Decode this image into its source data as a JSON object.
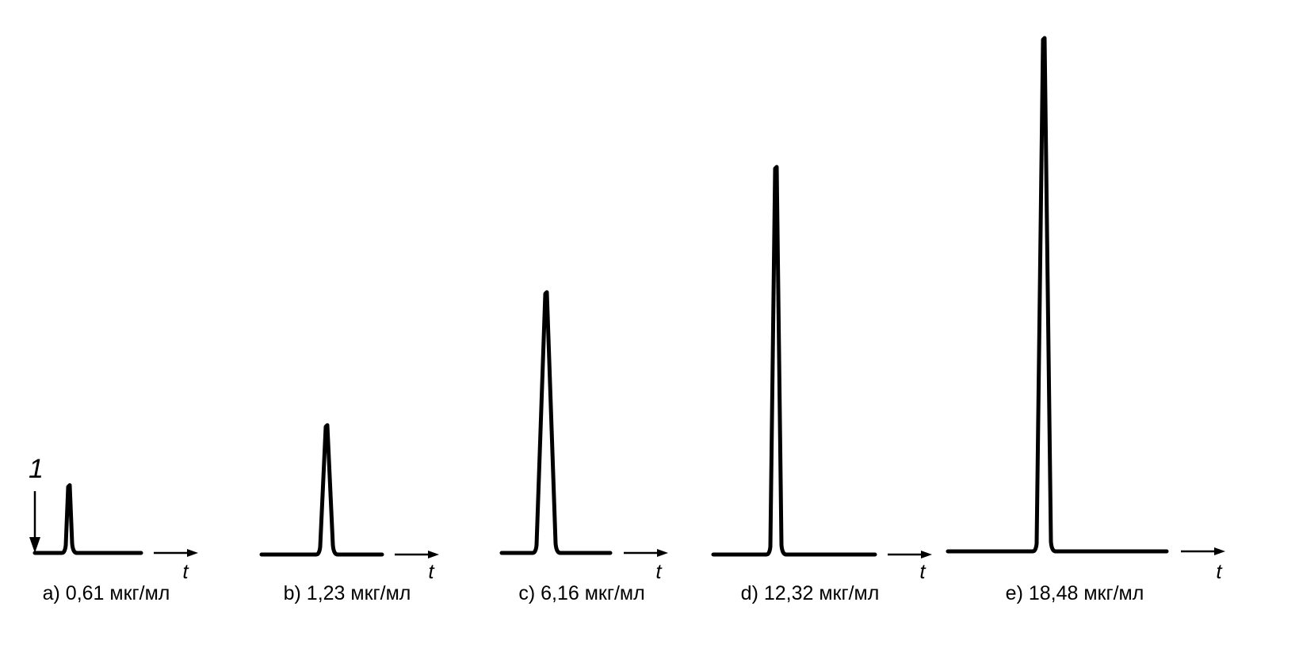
{
  "chart_data": {
    "type": "line",
    "marker": {
      "label": "1"
    },
    "axis_label": "t",
    "panels": [
      {
        "caption": "a) 0,61 мкг/мл",
        "peak_height": 0.132
      },
      {
        "caption": "b) 1,23 мкг/мл",
        "peak_height": 0.252
      },
      {
        "caption": "c) 6,16 мкг/мл",
        "peak_height": 0.508
      },
      {
        "caption": "d) 12,32 мкг/мл",
        "peak_height": 0.755
      },
      {
        "caption": "e) 18,48 мкг/мл",
        "peak_height": 1.0
      }
    ]
  }
}
